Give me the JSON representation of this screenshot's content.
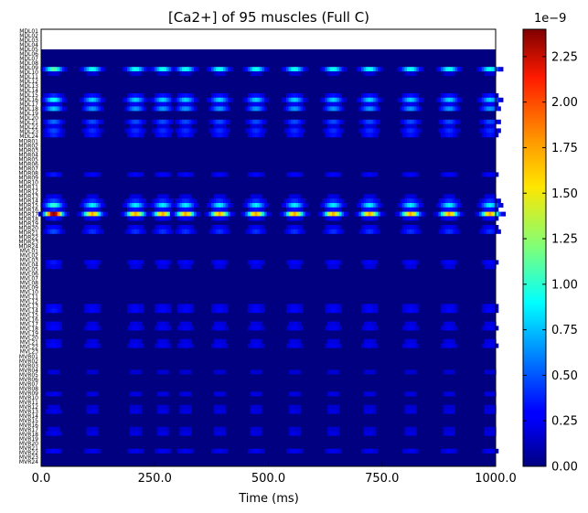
{
  "chart_data": {
    "type": "heatmap",
    "title": "[Ca2+] of 95 muscles (Full C)",
    "xlabel": "Time (ms)",
    "ylabel": "",
    "xlim": [
      0,
      1000
    ],
    "xticks": [
      0,
      250,
      500,
      750,
      1000
    ],
    "xtick_labels": [
      "0.0",
      "250.0",
      "500.0",
      "750.0",
      "1000.0"
    ],
    "colormap": "jet",
    "colorbar": {
      "range": [
        0,
        2.4
      ],
      "ticks": [
        0,
        0.25,
        0.5,
        0.75,
        1.0,
        1.25,
        1.5,
        1.75,
        2.0,
        2.25
      ],
      "tick_labels": [
        "0.00",
        "0.25",
        "0.50",
        "0.75",
        "1.00",
        "1.25",
        "1.50",
        "1.75",
        "2.00",
        "2.25"
      ],
      "offset_label": "1e−9"
    },
    "num_rows": 95,
    "muscle_labels": [
      "MDL01",
      "MDL02",
      "MDL03",
      "MDL04",
      "MDL05",
      "MDL06",
      "MDL07",
      "MDL08",
      "MDL09",
      "MDL10",
      "MDL11",
      "MDL12",
      "MDL13",
      "MDL14",
      "MDL15",
      "MDL16",
      "MDL17",
      "MDL18",
      "MDL19",
      "MDL20",
      "MDL21",
      "MDL22",
      "MDL23",
      "MDL24",
      "MDR01",
      "MDR02",
      "MDR03",
      "MDR04",
      "MDR05",
      "MDR06",
      "MDR07",
      "MDR08",
      "MDR09",
      "MDR10",
      "MDR11",
      "MDR12",
      "MDR13",
      "MDR14",
      "MDR15",
      "MDR16",
      "MDR17",
      "MDR18",
      "MDR19",
      "MDR20",
      "MDR21",
      "MDR22",
      "MDR23",
      "MDR24",
      "MVL01",
      "MVL02",
      "MVL03",
      "MVL04",
      "MVL05",
      "MVL06",
      "MVL07",
      "MVL08",
      "MVL09",
      "MVL10",
      "MVL11",
      "MVL12",
      "MVL13",
      "MVL14",
      "MVL15",
      "MVL16",
      "MVL17",
      "MVL18",
      "MVL19",
      "MVL20",
      "MVL21",
      "MVL22",
      "MVL23",
      "MVR01",
      "MVR02",
      "MVR03",
      "MVR04",
      "MVR05",
      "MVR06",
      "MVR07",
      "MVR08",
      "MVR09",
      "MVR10",
      "MVR11",
      "MVR12",
      "MVR13",
      "MVR14",
      "MVR15",
      "MVR16",
      "MVR17",
      "MVR18",
      "MVR19",
      "MVR20",
      "MVR21",
      "MVR22",
      "MVR23",
      "MVR24"
    ],
    "burst_times_ms": [
      25,
      110,
      205,
      265,
      315,
      390,
      470,
      555,
      640,
      720,
      810,
      895,
      985
    ],
    "row_peaks": [
      {
        "row": 4,
        "value": 1.2
      },
      {
        "row": 5,
        "value": 0.15
      },
      {
        "row": 10,
        "value": 0.35
      },
      {
        "row": 11,
        "value": 1.0
      },
      {
        "row": 12,
        "value": 0.25
      },
      {
        "row": 13,
        "value": 0.8
      },
      {
        "row": 16,
        "value": 0.55
      },
      {
        "row": 17,
        "value": 0.2
      },
      {
        "row": 18,
        "value": 0.45
      },
      {
        "row": 19,
        "value": 0.35
      },
      {
        "row": 28,
        "value": 0.3
      },
      {
        "row": 33,
        "value": 0.2
      },
      {
        "row": 34,
        "value": 0.45
      },
      {
        "row": 35,
        "value": 1.1
      },
      {
        "row": 36,
        "value": 0.35
      },
      {
        "row": 37,
        "value": 2.3
      },
      {
        "row": 38,
        "value": 0.3
      },
      {
        "row": 40,
        "value": 0.25
      },
      {
        "row": 41,
        "value": 0.45
      },
      {
        "row": 48,
        "value": 0.3
      },
      {
        "row": 49,
        "value": 0.2
      },
      {
        "row": 58,
        "value": 0.25
      },
      {
        "row": 59,
        "value": 0.3
      },
      {
        "row": 62,
        "value": 0.2
      },
      {
        "row": 63,
        "value": 0.25
      },
      {
        "row": 66,
        "value": 0.2
      },
      {
        "row": 67,
        "value": 0.25
      },
      {
        "row": 73,
        "value": 0.15
      },
      {
        "row": 78,
        "value": 0.2
      },
      {
        "row": 81,
        "value": 0.15
      },
      {
        "row": 82,
        "value": 0.2
      },
      {
        "row": 86,
        "value": 0.15
      },
      {
        "row": 87,
        "value": 0.2
      },
      {
        "row": 91,
        "value": 0.25
      }
    ]
  }
}
